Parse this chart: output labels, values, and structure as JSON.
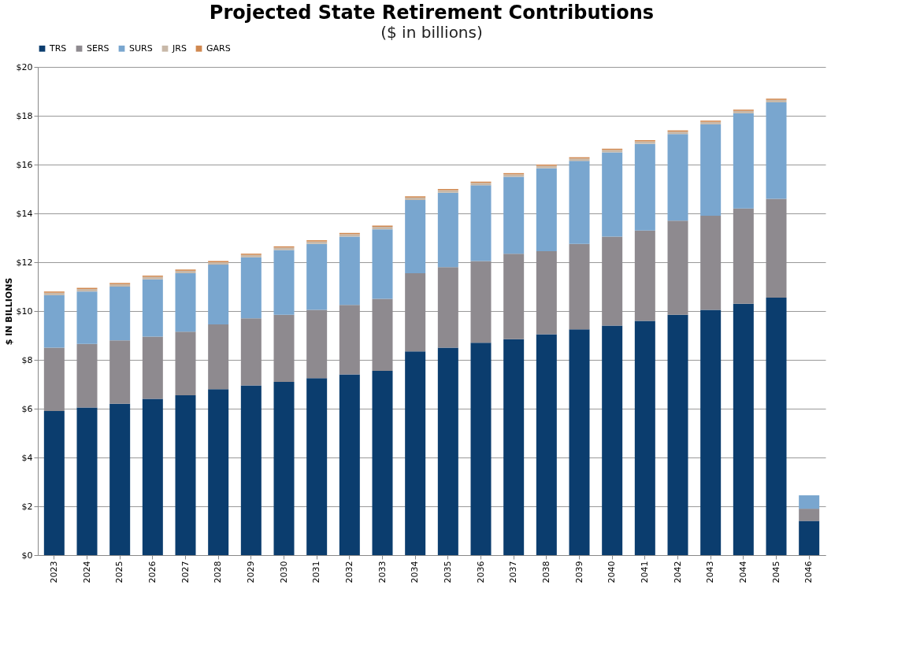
{
  "chart_data": {
    "type": "bar",
    "title": "Projected State Retirement Contributions",
    "subtitle": "($ in billions)",
    "ylabel": "$ IN BILLIONS",
    "categories": [
      "2023",
      "2024",
      "2025",
      "2026",
      "2027",
      "2028",
      "2029",
      "2030",
      "2031",
      "2032",
      "2033",
      "2034",
      "2035",
      "2036",
      "2037",
      "2038",
      "2039",
      "2040",
      "2041",
      "2042",
      "2043",
      "2044",
      "2045",
      "2046"
    ],
    "stacked": true,
    "series": [
      {
        "name": "TRS",
        "color": "#0b3d6e",
        "values": [
          5.9,
          6.05,
          6.2,
          6.4,
          6.55,
          6.8,
          6.95,
          7.1,
          7.25,
          7.4,
          7.55,
          8.35,
          8.5,
          8.7,
          8.85,
          9.05,
          9.25,
          9.4,
          9.6,
          9.85,
          10.05,
          10.3,
          10.55,
          1.4
        ]
      },
      {
        "name": "SERS",
        "color": "#8e8a8f",
        "values": [
          2.6,
          2.6,
          2.6,
          2.55,
          2.6,
          2.65,
          2.75,
          2.75,
          2.8,
          2.85,
          2.95,
          3.2,
          3.3,
          3.35,
          3.5,
          3.4,
          3.5,
          3.65,
          3.7,
          3.85,
          3.85,
          3.9,
          4.05,
          0.5
        ]
      },
      {
        "name": "SURS",
        "color": "#79a6cf",
        "values": [
          2.15,
          2.15,
          2.2,
          2.35,
          2.4,
          2.45,
          2.5,
          2.65,
          2.7,
          2.8,
          2.85,
          3.0,
          3.05,
          3.1,
          3.15,
          3.4,
          3.4,
          3.45,
          3.55,
          3.55,
          3.75,
          3.9,
          3.95,
          0.55
        ]
      },
      {
        "name": "JRS",
        "color": "#c8b8a8",
        "values": [
          0.1,
          0.1,
          0.1,
          0.1,
          0.1,
          0.1,
          0.1,
          0.1,
          0.1,
          0.1,
          0.1,
          0.1,
          0.1,
          0.1,
          0.1,
          0.1,
          0.1,
          0.1,
          0.1,
          0.1,
          0.1,
          0.1,
          0.1,
          null
        ]
      },
      {
        "name": "GARS",
        "color": "#d08850",
        "values": [
          0.05,
          0.05,
          0.05,
          0.05,
          0.05,
          0.05,
          0.05,
          0.05,
          0.05,
          0.05,
          0.05,
          0.05,
          0.05,
          0.05,
          0.05,
          0.05,
          0.05,
          0.05,
          0.05,
          0.05,
          0.05,
          0.05,
          0.05,
          null
        ]
      }
    ],
    "ylim": [
      0,
      20
    ],
    "yticks": [
      {
        "value": 0,
        "label": "$0"
      },
      {
        "value": 2,
        "label": "$2"
      },
      {
        "value": 4,
        "label": "$4"
      },
      {
        "value": 6,
        "label": "$6"
      },
      {
        "value": 8,
        "label": "$8"
      },
      {
        "value": 10,
        "label": "$10"
      },
      {
        "value": 12,
        "label": "$12"
      },
      {
        "value": 14,
        "label": "$14"
      },
      {
        "value": 16,
        "label": "$16"
      },
      {
        "value": 18,
        "label": "$18"
      },
      {
        "value": 20,
        "label": "$20"
      }
    ],
    "grid": "y",
    "legend": "top"
  }
}
